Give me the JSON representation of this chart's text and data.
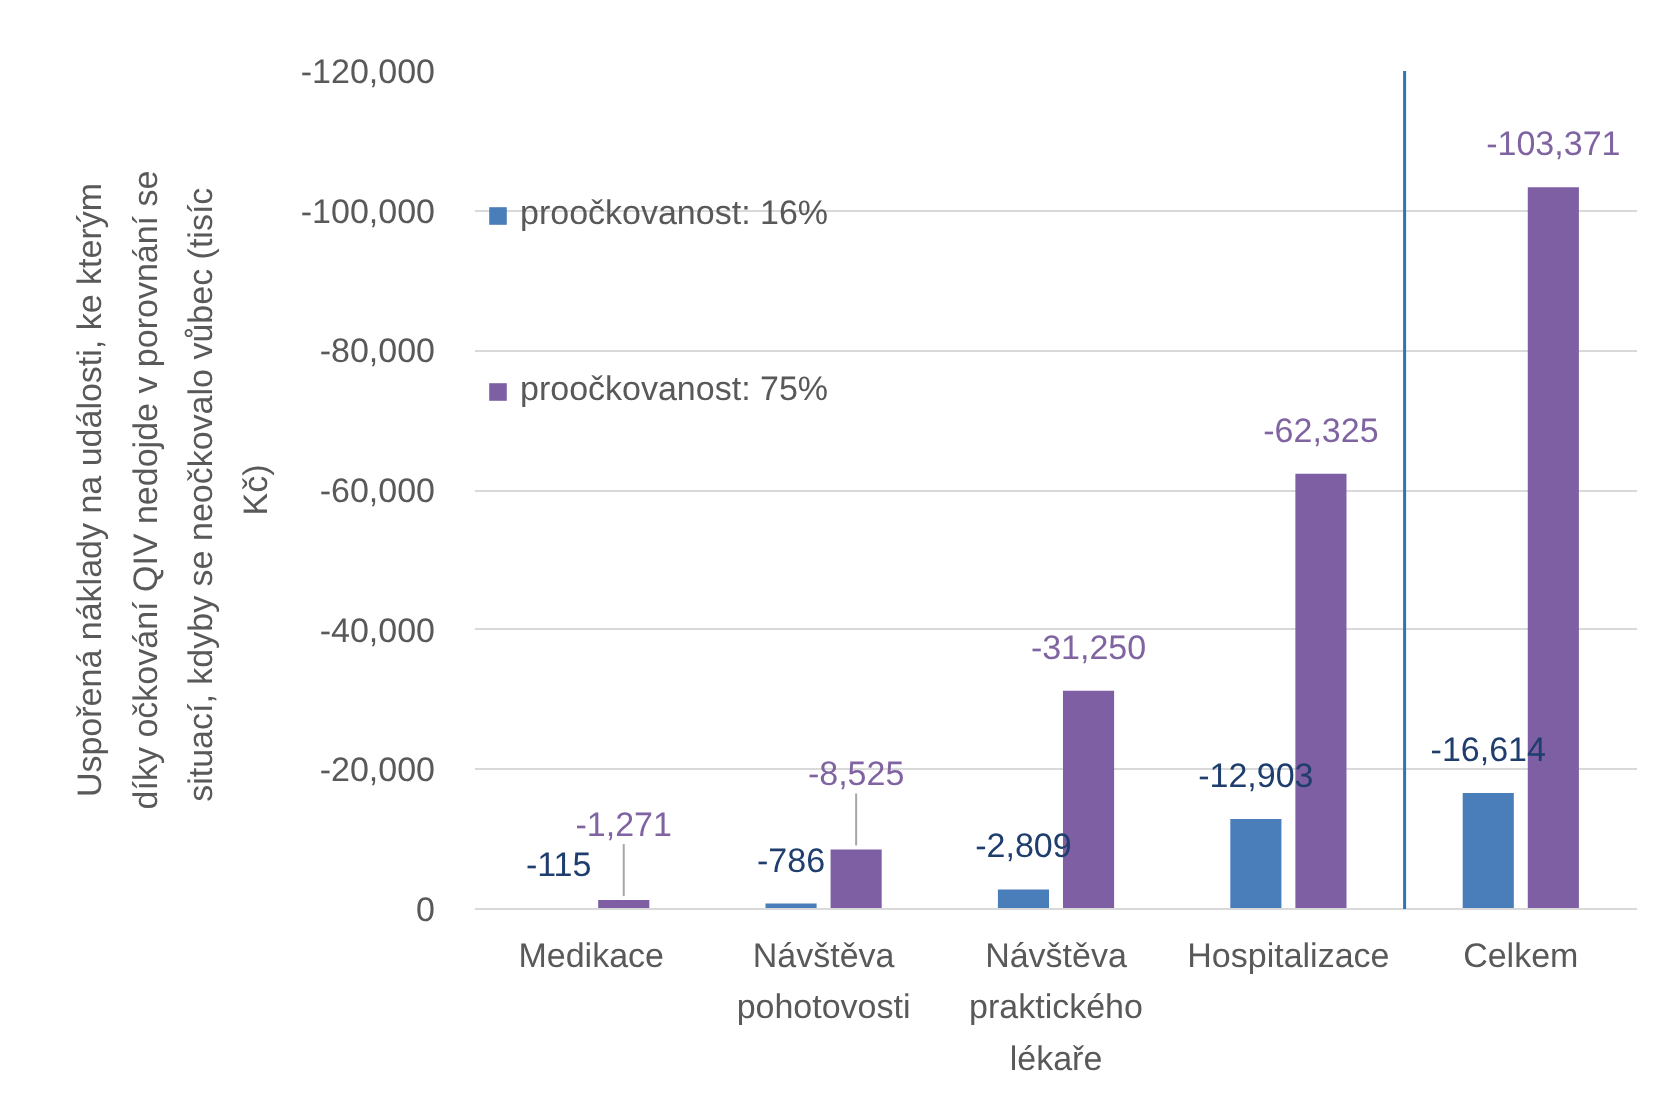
{
  "chart_data": {
    "type": "bar",
    "ylabel": "Uspořená náklady na události, ke kterým díky očkování QIV nedojde v porovnání se situací, kdyby se  neočkovalo vůbec (tisíc Kč)",
    "categories": [
      "Medikace",
      "Návštěva pohotovosti",
      "Návštěva praktického lékaře",
      "Hospitalizace",
      "Celkem"
    ],
    "series": [
      {
        "name": "proočkovanost: 16%",
        "color": "#4a7ebb",
        "values": [
          -115,
          -786,
          -2809,
          -12903,
          -16614
        ],
        "value_labels": [
          "-115",
          "-786",
          "-2,809",
          "-12,903",
          "-16,614"
        ]
      },
      {
        "name": "proočkovanost: 75%",
        "color": "#7e5fa3",
        "values": [
          -1271,
          -8525,
          -31250,
          -62325,
          -103371
        ],
        "value_labels": [
          "-1,271",
          "-8,525",
          "-31,250",
          "-62,325",
          "-103,371"
        ]
      }
    ],
    "ylim": [
      0,
      -120000
    ],
    "yticks": [
      0,
      {
        "value": -20000,
        "label": "-20,000"
      },
      {
        "value": -40000,
        "label": "-40,000"
      },
      {
        "value": -60000,
        "label": "-60,000"
      },
      {
        "value": -80000,
        "label": "-80,000"
      },
      {
        "value": -100000,
        "label": "-100,000"
      },
      {
        "value": -120000,
        "label": "-120,000"
      }
    ],
    "grid": "y",
    "legend": "top left",
    "ref_lines": [
      {
        "axis": "x",
        "value": "Celkem",
        "color": "#2e75b6"
      }
    ]
  }
}
